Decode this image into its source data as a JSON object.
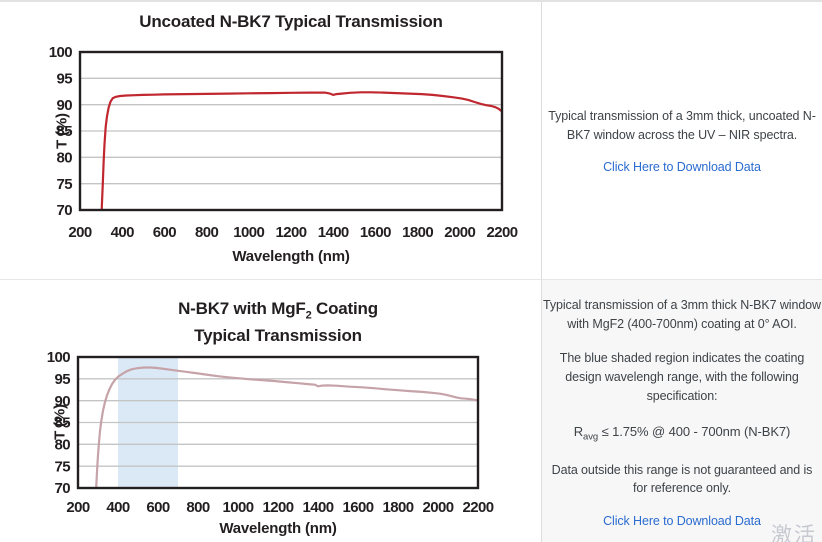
{
  "page": {
    "watermark": "激活"
  },
  "chart_data": [
    {
      "type": "line",
      "title": "Uncoated N-BK7 Typical Transmission",
      "xlabel": "Wavelength (nm)",
      "ylabel": "T (%)",
      "xlim": [
        200,
        2200
      ],
      "ylim": [
        70,
        100
      ],
      "xticks": [
        200,
        400,
        600,
        800,
        1000,
        1200,
        1400,
        1600,
        1800,
        2000,
        2200
      ],
      "yticks": [
        70,
        75,
        80,
        85,
        90,
        95,
        100
      ],
      "grid": "horizontal",
      "grid_color": "#c4c4c4",
      "line_color": "#c0272f",
      "legend": "none",
      "series": [
        {
          "name": "uncoated-nbk7-transmission",
          "points": [
            [
              300,
              67
            ],
            [
              304,
              71
            ],
            [
              308,
              75
            ],
            [
              312,
              79
            ],
            [
              316,
              82.5
            ],
            [
              322,
              85.8
            ],
            [
              328,
              87.8
            ],
            [
              336,
              89.5
            ],
            [
              345,
              90.6
            ],
            [
              355,
              91.2
            ],
            [
              370,
              91.5
            ],
            [
              390,
              91.65
            ],
            [
              420,
              91.75
            ],
            [
              460,
              91.8
            ],
            [
              500,
              91.85
            ],
            [
              550,
              91.9
            ],
            [
              600,
              91.95
            ],
            [
              700,
              92.0
            ],
            [
              800,
              92.05
            ],
            [
              900,
              92.1
            ],
            [
              1000,
              92.15
            ],
            [
              1100,
              92.2
            ],
            [
              1200,
              92.25
            ],
            [
              1290,
              92.3
            ],
            [
              1360,
              92.3
            ],
            [
              1385,
              92.1
            ],
            [
              1400,
              91.85
            ],
            [
              1415,
              92.0
            ],
            [
              1440,
              92.1
            ],
            [
              1480,
              92.25
            ],
            [
              1530,
              92.35
            ],
            [
              1580,
              92.35
            ],
            [
              1640,
              92.3
            ],
            [
              1700,
              92.2
            ],
            [
              1760,
              92.1
            ],
            [
              1820,
              92.0
            ],
            [
              1870,
              91.85
            ],
            [
              1920,
              91.65
            ],
            [
              1970,
              91.4
            ],
            [
              2010,
              91.15
            ],
            [
              2040,
              90.9
            ],
            [
              2070,
              90.5
            ],
            [
              2100,
              90.15
            ],
            [
              2125,
              89.9
            ],
            [
              2150,
              89.75
            ],
            [
              2170,
              89.5
            ],
            [
              2185,
              89.2
            ],
            [
              2200,
              88.7
            ]
          ]
        }
      ]
    },
    {
      "type": "line",
      "title_parts": {
        "pre": "N-BK7 with MgF",
        "sub": "2",
        "post": " Coating"
      },
      "title_line2": "Typical Transmission",
      "xlabel": "Wavelength (nm)",
      "ylabel": "T (%)",
      "xlim": [
        200,
        2200
      ],
      "ylim": [
        70,
        100
      ],
      "xticks": [
        200,
        400,
        600,
        800,
        1000,
        1200,
        1400,
        1600,
        1800,
        2000,
        2200
      ],
      "yticks": [
        70,
        75,
        80,
        85,
        90,
        95,
        100
      ],
      "grid": "horizontal",
      "grid_color": "#c4c4c4",
      "line_color": "#c6a3a8",
      "legend": "none",
      "shaded_region": {
        "from": 400,
        "to": 700,
        "color": "#dbe9f6"
      },
      "series": [
        {
          "name": "mgf2-coated-nbk7-transmission",
          "points": [
            [
              288,
              67
            ],
            [
              292,
              71
            ],
            [
              296,
              74.5
            ],
            [
              300,
              77.5
            ],
            [
              305,
              80.5
            ],
            [
              310,
              83
            ],
            [
              317,
              85.5
            ],
            [
              325,
              87.7
            ],
            [
              334,
              89.5
            ],
            [
              344,
              91.1
            ],
            [
              356,
              92.5
            ],
            [
              370,
              93.8
            ],
            [
              386,
              94.8
            ],
            [
              404,
              95.6
            ],
            [
              424,
              96.2
            ],
            [
              446,
              96.8
            ],
            [
              470,
              97.2
            ],
            [
              500,
              97.45
            ],
            [
              530,
              97.6
            ],
            [
              560,
              97.6
            ],
            [
              590,
              97.5
            ],
            [
              620,
              97.35
            ],
            [
              660,
              97.1
            ],
            [
              700,
              96.85
            ],
            [
              740,
              96.6
            ],
            [
              780,
              96.35
            ],
            [
              820,
              96.1
            ],
            [
              860,
              95.85
            ],
            [
              900,
              95.6
            ],
            [
              950,
              95.35
            ],
            [
              1000,
              95.15
            ],
            [
              1060,
              94.9
            ],
            [
              1120,
              94.7
            ],
            [
              1180,
              94.5
            ],
            [
              1240,
              94.25
            ],
            [
              1300,
              94.0
            ],
            [
              1350,
              93.8
            ],
            [
              1385,
              93.65
            ],
            [
              1400,
              93.3
            ],
            [
              1420,
              93.45
            ],
            [
              1450,
              93.5
            ],
            [
              1500,
              93.4
            ],
            [
              1560,
              93.2
            ],
            [
              1620,
              93.05
            ],
            [
              1680,
              92.85
            ],
            [
              1740,
              92.6
            ],
            [
              1800,
              92.4
            ],
            [
              1860,
              92.2
            ],
            [
              1920,
              92.0
            ],
            [
              1970,
              91.8
            ],
            [
              2010,
              91.6
            ],
            [
              2040,
              91.35
            ],
            [
              2070,
              91.0
            ],
            [
              2095,
              90.7
            ],
            [
              2115,
              90.55
            ],
            [
              2140,
              90.45
            ],
            [
              2170,
              90.3
            ],
            [
              2200,
              90.05
            ]
          ]
        }
      ]
    }
  ],
  "panels": {
    "top": {
      "text": "Typical transmission of a 3mm thick, uncoated N-BK7 window across the UV – NIR spectra.",
      "link": "Click Here to Download Data"
    },
    "bottom": {
      "para1": "Typical transmission of a 3mm thick N-BK7 window with MgF2 (400-700nm) coating at 0° AOI.",
      "para2": "The blue shaded region indicates the coating design wavelengh range, with the following specification:",
      "spec_prefix": "R",
      "spec_sub": "avg",
      "spec_rest": " ≤ 1.75% @ 400 - 700nm (N-BK7)",
      "para3": "Data outside this range is not guaranteed and is for reference only.",
      "link": "Click Here to Download Data"
    }
  }
}
